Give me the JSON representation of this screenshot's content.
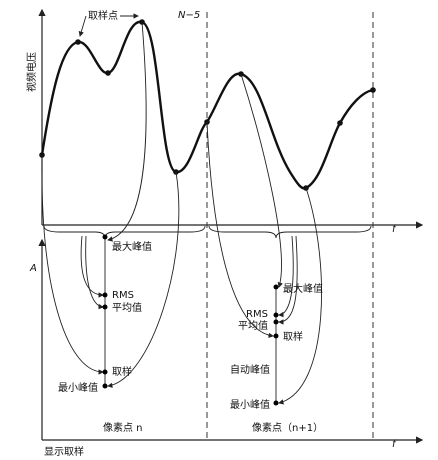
{
  "top_plot": {
    "sample_point": "取样点",
    "marker": "N−5",
    "y_axis": "视频电压",
    "x_axis": "f"
  },
  "bottom_plot": {
    "y_axis": "A",
    "x_axis": "f",
    "footer": "显示取样"
  },
  "pixel_n": {
    "caption": "像素点 n",
    "max_peak": "最大峰值",
    "rms": "RMS",
    "average": "平均值",
    "sample": "取样",
    "min_peak": "最小峰值"
  },
  "pixel_n_plus_1": {
    "caption": "像素点（n+1）",
    "max_peak": "最大峰值",
    "rms": "RMS",
    "average": "平均值",
    "sample": "取样",
    "auto_peak": "自动峰值",
    "min_peak": "最小峰值"
  }
}
